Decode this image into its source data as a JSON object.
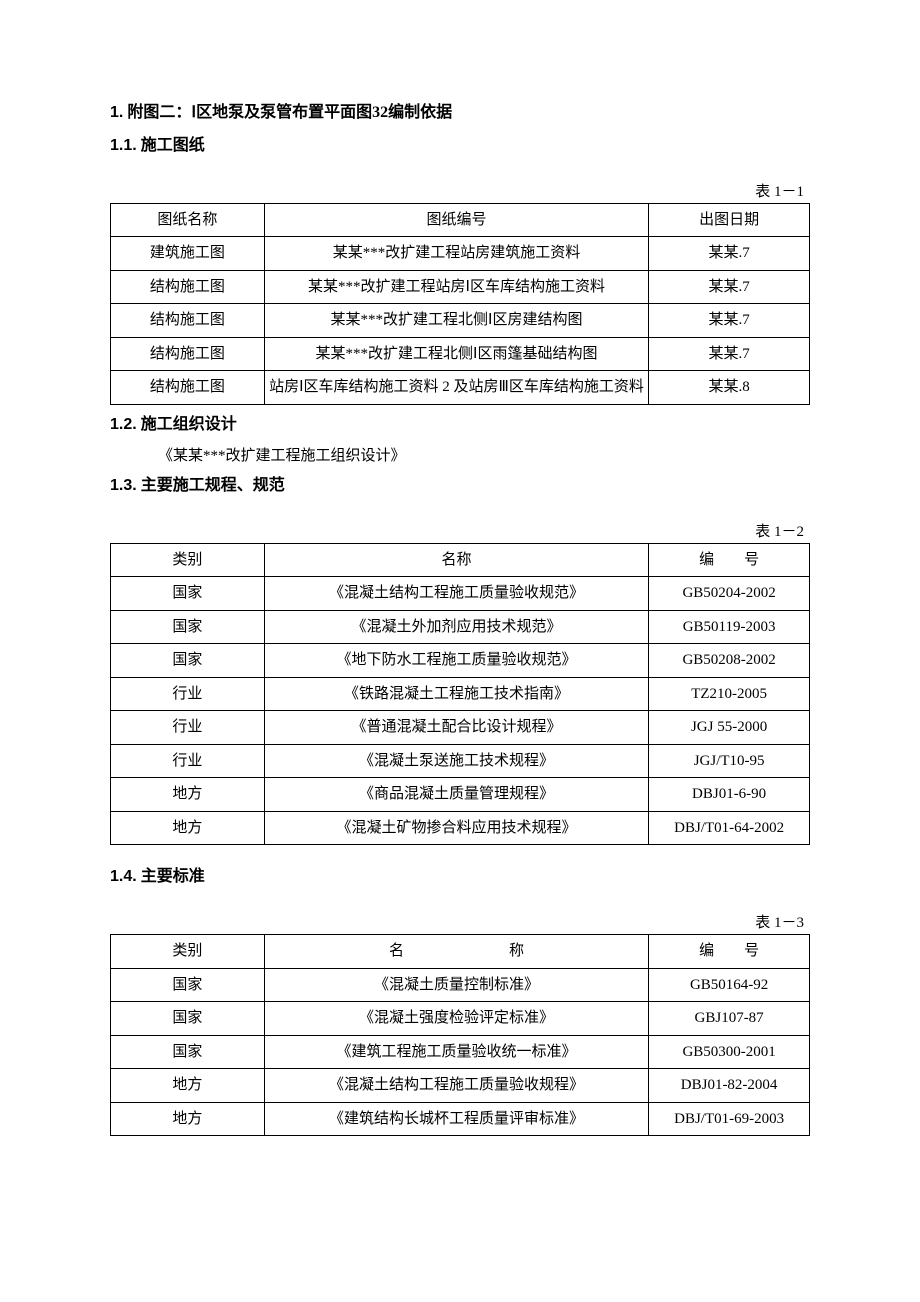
{
  "section1": {
    "number": "1.",
    "title": "附图二：Ⅰ区地泵及泵管布置平面图32编制依据"
  },
  "section1_1": {
    "number": "1.1.",
    "title": "施工图纸"
  },
  "table1": {
    "caption": "表 1－1",
    "col_widths": [
      "22%",
      "55%",
      "23%"
    ],
    "columns": [
      "图纸名称",
      "图纸编号",
      "出图日期"
    ],
    "rows": [
      [
        "建筑施工图",
        "某某***改扩建工程站房建筑施工资料",
        "某某.7"
      ],
      [
        "结构施工图",
        "某某***改扩建工程站房Ⅰ区车库结构施工资料",
        "某某.7"
      ],
      [
        "结构施工图",
        "某某***改扩建工程北侧Ⅰ区房建结构图",
        "某某.7"
      ],
      [
        "结构施工图",
        "某某***改扩建工程北侧Ⅰ区雨篷基础结构图",
        "某某.7"
      ],
      [
        "结构施工图",
        "站房Ⅰ区车库结构施工资料 2 及站房Ⅲ区车库结构施工资料",
        "某某.8"
      ]
    ]
  },
  "section1_2": {
    "number": "1.2.",
    "title": "施工组织设计",
    "body": "《某某***改扩建工程施工组织设计》"
  },
  "section1_3": {
    "number": "1.3.",
    "title": "主要施工规程、规范"
  },
  "table2": {
    "caption": "表 1－2",
    "col_widths": [
      "22%",
      "55%",
      "23%"
    ],
    "columns": [
      "类别",
      "名称",
      "编　　号"
    ],
    "rows": [
      [
        "国家",
        "《混凝土结构工程施工质量验收规范》",
        "GB50204-2002"
      ],
      [
        "国家",
        "《混凝土外加剂应用技术规范》",
        "GB50119-2003"
      ],
      [
        "国家",
        "《地下防水工程施工质量验收规范》",
        "GB50208-2002"
      ],
      [
        "行业",
        "《铁路混凝土工程施工技术指南》",
        "TZ210-2005"
      ],
      [
        "行业",
        "《普通混凝土配合比设计规程》",
        "JGJ 55-2000"
      ],
      [
        "行业",
        "《混凝土泵送施工技术规程》",
        "JGJ/T10-95"
      ],
      [
        "地方",
        "《商品混凝土质量管理规程》",
        "DBJ01-6-90"
      ],
      [
        "地方",
        "《混凝土矿物掺合料应用技术规程》",
        "DBJ/T01-64-2002"
      ]
    ]
  },
  "section1_4": {
    "number": "1.4.",
    "title": "主要标准"
  },
  "table3": {
    "caption": "表 1－3",
    "col_widths": [
      "22%",
      "55%",
      "23%"
    ],
    "columns": [
      "类别",
      "名　　　　　　　称",
      "编　　号"
    ],
    "rows": [
      [
        "国家",
        "《混凝土质量控制标准》",
        "GB50164-92"
      ],
      [
        "国家",
        "《混凝土强度检验评定标准》",
        "GBJ107-87"
      ],
      [
        "国家",
        "《建筑工程施工质量验收统一标准》",
        "GB50300-2001"
      ],
      [
        "地方",
        "《混凝土结构工程施工质量验收规程》",
        "DBJ01-82-2004"
      ],
      [
        "地方",
        "《建筑结构长城杯工程质量评审标准》",
        "DBJ/T01-69-2003"
      ]
    ]
  }
}
